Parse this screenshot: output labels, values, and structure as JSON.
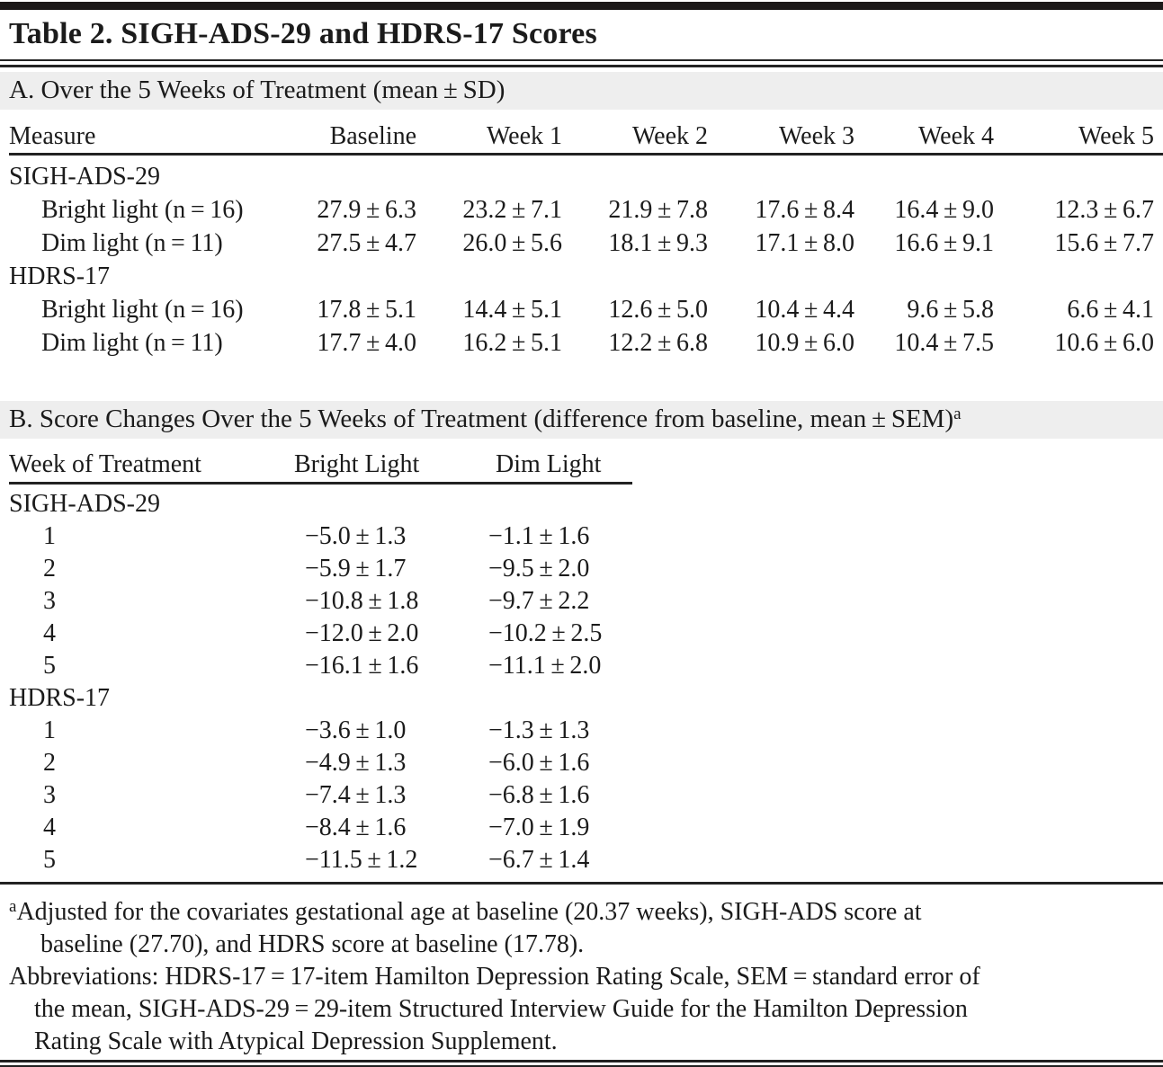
{
  "title": "Table 2. SIGH-ADS-29 and HDRS-17 Scores",
  "section_a": {
    "heading": "A. Over the 5 Weeks of Treatment (mean ± SD)",
    "columns": [
      "Measure",
      "Baseline",
      "Week 1",
      "Week 2",
      "Week 3",
      "Week 4",
      "Week 5"
    ],
    "groups": [
      {
        "name": "SIGH-ADS-29",
        "rows": [
          {
            "label": "Bright light (n = 16)",
            "values": [
              "27.9 ± 6.3",
              "23.2 ± 7.1",
              "21.9 ± 7.8",
              "17.6 ± 8.4",
              "16.4 ± 9.0",
              "12.3 ± 6.7"
            ]
          },
          {
            "label": "Dim light (n = 11)",
            "values": [
              "27.5 ± 4.7",
              "26.0 ± 5.6",
              "18.1 ± 9.3",
              "17.1 ± 8.0",
              "16.6 ± 9.1",
              "15.6 ± 7.7"
            ]
          }
        ]
      },
      {
        "name": "HDRS-17",
        "rows": [
          {
            "label": "Bright light (n = 16)",
            "values": [
              "17.8 ± 5.1",
              "14.4 ± 5.1",
              "12.6 ± 5.0",
              "10.4 ± 4.4",
              "9.6 ± 5.8",
              "6.6 ± 4.1"
            ]
          },
          {
            "label": "Dim light (n = 11)",
            "values": [
              "17.7 ± 4.0",
              "16.2 ± 5.1",
              "12.2 ± 6.8",
              "10.9 ± 6.0",
              "10.4 ± 7.5",
              "10.6 ± 6.0"
            ]
          }
        ]
      }
    ]
  },
  "section_b": {
    "heading": "B. Score Changes Over the 5 Weeks of Treatment (difference from baseline, mean ± SEM)",
    "heading_sup": "a",
    "columns": [
      "Week of Treatment",
      "Bright Light",
      "Dim Light"
    ],
    "groups": [
      {
        "name": "SIGH-ADS-29",
        "rows": [
          {
            "week": "1",
            "bright": "−5.0 ± 1.3",
            "dim": "−1.1 ± 1.6"
          },
          {
            "week": "2",
            "bright": "−5.9 ± 1.7",
            "dim": "−9.5 ± 2.0"
          },
          {
            "week": "3",
            "bright": "−10.8 ± 1.8",
            "dim": "−9.7 ± 2.2"
          },
          {
            "week": "4",
            "bright": "−12.0 ± 2.0",
            "dim": "−10.2 ± 2.5"
          },
          {
            "week": "5",
            "bright": "−16.1 ± 1.6",
            "dim": "−11.1 ± 2.0"
          }
        ]
      },
      {
        "name": "HDRS-17",
        "rows": [
          {
            "week": "1",
            "bright": "−3.6 ± 1.0",
            "dim": "−1.3 ± 1.3"
          },
          {
            "week": "2",
            "bright": "−4.9 ± 1.3",
            "dim": "−6.0 ± 1.6"
          },
          {
            "week": "3",
            "bright": "−7.4 ± 1.3",
            "dim": "−6.8 ± 1.6"
          },
          {
            "week": "4",
            "bright": "−8.4 ± 1.6",
            "dim": "−7.0 ± 1.9"
          },
          {
            "week": "5",
            "bright": "−11.5 ± 1.2",
            "dim": "−6.7 ± 1.4"
          }
        ]
      }
    ]
  },
  "footnotes": {
    "a": {
      "marker": "a",
      "lines": [
        "Adjusted for the covariates gestational age at baseline (20.37 weeks), SIGH-ADS score at",
        "baseline (27.70), and HDRS score at baseline (17.78)."
      ]
    },
    "abbreviations": {
      "lines": [
        "Abbreviations: HDRS-17 = 17-item Hamilton Depression Rating Scale, SEM = standard error of",
        "the mean, SIGH-ADS-29 = 29-item Structured Interview Guide for the Hamilton Depression",
        "Rating Scale with Atypical Depression Supplement."
      ]
    }
  },
  "colors": {
    "band_gray": "#eeeeee",
    "rule_black": "#222222",
    "text": "#1b1b1b"
  }
}
